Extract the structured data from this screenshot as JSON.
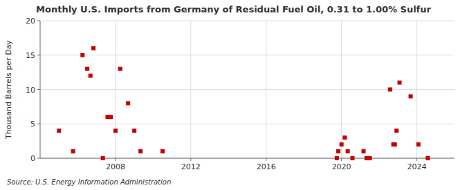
{
  "chart_data": {
    "type": "scatter",
    "title": "Monthly U.S. Imports from Germany of Residual Fuel Oil, 0.31 to 1.00% Sulfur",
    "ylabel": "Thousand Barrels per Day",
    "annotation": "Source: U.S. Energy Information Administration",
    "color": "#cc0000",
    "marker": "square",
    "grid": true,
    "xlim": [
      2004.0,
      2026.0
    ],
    "xticks": [
      2008,
      2012,
      2016,
      2020,
      2024
    ],
    "ylim": [
      0,
      20
    ],
    "yticks": [
      0,
      5,
      10,
      15,
      20
    ],
    "x": [
      2005.0,
      2005.75,
      2006.25,
      2006.5,
      2006.67,
      2006.83,
      2007.33,
      2007.58,
      2007.75,
      2008.0,
      2008.25,
      2008.67,
      2009.0,
      2009.33,
      2010.5,
      2019.75,
      2019.83,
      2020.0,
      2020.17,
      2020.33,
      2020.58,
      2021.17,
      2021.33,
      2021.5,
      2022.58,
      2022.75,
      2022.83,
      2022.92,
      2023.08,
      2023.67,
      2024.08,
      2024.58
    ],
    "values": [
      4.0,
      1.0,
      15.0,
      13.0,
      12.0,
      16.0,
      0.0,
      6.0,
      6.0,
      4.0,
      13.0,
      8.0,
      4.0,
      1.0,
      1.0,
      0.0,
      1.0,
      2.0,
      3.0,
      1.0,
      0.0,
      1.0,
      0.0,
      0.0,
      10.0,
      2.0,
      2.0,
      4.0,
      11.0,
      9.0,
      2.0,
      0.0
    ]
  }
}
